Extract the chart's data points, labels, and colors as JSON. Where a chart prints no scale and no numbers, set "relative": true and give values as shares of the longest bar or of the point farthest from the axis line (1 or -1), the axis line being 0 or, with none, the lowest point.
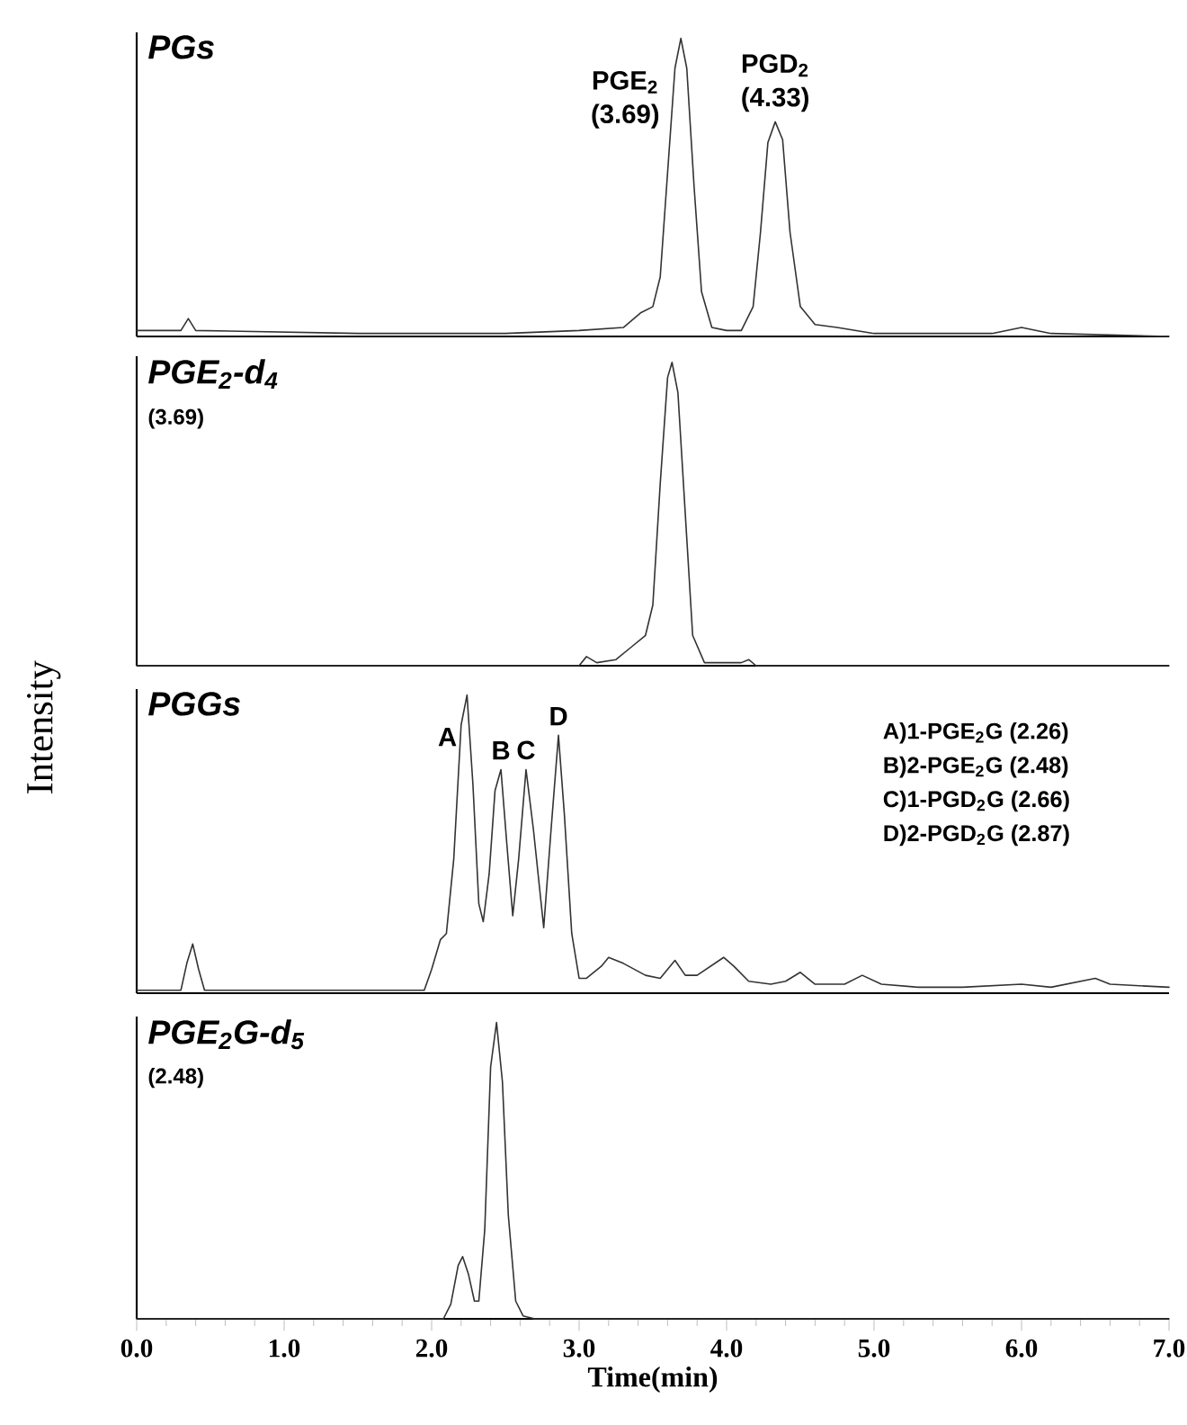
{
  "chart_data": [
    {
      "type": "line",
      "title": "PGs",
      "relative": true,
      "xlim": [
        0,
        7
      ],
      "tick_labels": false,
      "series": [
        {
          "color": "#333333",
          "x": [
            0,
            0.3,
            0.35,
            0.4,
            1.5,
            2.5,
            3.0,
            3.3,
            3.42,
            3.5,
            3.55,
            3.6,
            3.65,
            3.69,
            3.73,
            3.78,
            3.83,
            3.9,
            4.0,
            4.1,
            4.18,
            4.23,
            4.28,
            4.33,
            4.38,
            4.43,
            4.5,
            4.6,
            4.75,
            5.0,
            5.8,
            6.0,
            6.2,
            7.0
          ],
          "values": [
            0.02,
            0.02,
            0.06,
            0.02,
            0.01,
            0.01,
            0.02,
            0.03,
            0.08,
            0.1,
            0.2,
            0.55,
            0.9,
            1,
            0.9,
            0.5,
            0.15,
            0.03,
            0.02,
            0.02,
            0.1,
            0.35,
            0.65,
            0.72,
            0.66,
            0.35,
            0.1,
            0.04,
            0.03,
            0.01,
            0.01,
            0.03,
            0.01,
            0.0
          ]
        }
      ],
      "annotations": [
        {
          "text": "PGE$_{2}$ (3.69)",
          "x": 3.69,
          "y": 1
        },
        {
          "text": "PGD$_{2}$ (4.33)",
          "x": 4.33,
          "y": 0.72
        }
      ]
    },
    {
      "type": "line",
      "title": "*PGE$_{2}$-d$_{4}$*",
      "subtitle": "(3.69)",
      "ylabel": "Intensity",
      "relative": true,
      "xlim": [
        0,
        7
      ],
      "tick_labels": false,
      "series": [
        {
          "color": "#333333",
          "x": [
            0,
            3.0,
            3.05,
            3.12,
            3.25,
            3.35,
            3.45,
            3.5,
            3.55,
            3.6,
            3.63,
            3.67,
            3.72,
            3.77,
            3.85,
            4.1,
            4.15,
            4.2,
            7.0
          ],
          "values": [
            0,
            0,
            0.03,
            0.01,
            0.02,
            0.06,
            0.1,
            0.2,
            0.6,
            0.95,
            1,
            0.9,
            0.5,
            0.1,
            0.01,
            0.01,
            0.02,
            0,
            0
          ]
        }
      ]
    },
    {
      "type": "line",
      "title": "PGGs",
      "relative": true,
      "xlim": [
        0,
        7
      ],
      "tick_labels": false,
      "series": [
        {
          "color": "#333333",
          "x": [
            0,
            0.3,
            0.34,
            0.38,
            0.42,
            0.46,
            1.0,
            1.95,
            2.0,
            2.06,
            2.1,
            2.15,
            2.2,
            2.24,
            2.28,
            2.32,
            2.35,
            2.39,
            2.43,
            2.47,
            2.51,
            2.55,
            2.59,
            2.64,
            2.69,
            2.76,
            2.81,
            2.86,
            2.9,
            2.95,
            3.0,
            3.05,
            3.15,
            3.2,
            3.3,
            3.45,
            3.55,
            3.65,
            3.72,
            3.8,
            3.98,
            4.05,
            4.15,
            4.3,
            4.4,
            4.5,
            4.6,
            4.8,
            4.92,
            5.05,
            5.3,
            5.6,
            6.0,
            6.2,
            6.5,
            6.6,
            7.0
          ],
          "values": [
            0.01,
            0.01,
            0.1,
            0.165,
            0.08,
            0.01,
            0.01,
            0.01,
            0.08,
            0.18,
            0.2,
            0.45,
            0.9,
            1,
            0.7,
            0.3,
            0.24,
            0.4,
            0.68,
            0.75,
            0.5,
            0.26,
            0.45,
            0.75,
            0.55,
            0.22,
            0.55,
            0.865,
            0.6,
            0.2,
            0.05,
            0.05,
            0.09,
            0.12,
            0.1,
            0.06,
            0.05,
            0.11,
            0.06,
            0.06,
            0.12,
            0.09,
            0.04,
            0.03,
            0.04,
            0.07,
            0.03,
            0.03,
            0.06,
            0.03,
            0.02,
            0.02,
            0.03,
            0.02,
            0.05,
            0.03,
            0.02
          ]
        }
      ],
      "annotations": [
        {
          "text": "A",
          "x": 2.24,
          "y": 1
        },
        {
          "text": "B",
          "x": 2.47,
          "y": 0.75
        },
        {
          "text": "C",
          "x": 2.64,
          "y": 0.75
        },
        {
          "text": "D",
          "x": 2.86,
          "y": 0.865
        },
        "A)1-PGE$_{2}$G (2.26)",
        "B)2-PGE$_{2}$G (2.48)",
        "C)1-PGD$_{2}$G (2.66)",
        "D)2-PGD$_{2}$G (2.87)"
      ]
    },
    {
      "type": "line",
      "title": "*PGE$_{2}$G-d$_{5}$*",
      "subtitle": "(2.48)",
      "xlabel": "Time(min)",
      "relative": true,
      "xlim": [
        0,
        7
      ],
      "tick_labels": "x",
      "xticks": [
        {
          "value": 0,
          "label": "0.0"
        },
        {
          "value": 1,
          "label": "1.0"
        },
        {
          "value": 2,
          "label": "2.0"
        },
        {
          "value": 3,
          "label": "3.0"
        },
        {
          "value": 4,
          "label": "4.0"
        },
        {
          "value": 5,
          "label": "5.0"
        },
        {
          "value": 6,
          "label": "6.0"
        },
        {
          "value": 7,
          "label": "7.0"
        }
      ],
      "series": [
        {
          "color": "#333333",
          "x": [
            0,
            2.08,
            2.13,
            2.18,
            2.21,
            2.25,
            2.29,
            2.32,
            2.36,
            2.4,
            2.44,
            2.48,
            2.52,
            2.57,
            2.62,
            2.7,
            7.0
          ],
          "values": [
            0,
            0,
            0.05,
            0.18,
            0.21,
            0.15,
            0.06,
            0.06,
            0.3,
            0.85,
            1,
            0.8,
            0.35,
            0.06,
            0.01,
            0,
            0
          ]
        }
      ]
    }
  ]
}
